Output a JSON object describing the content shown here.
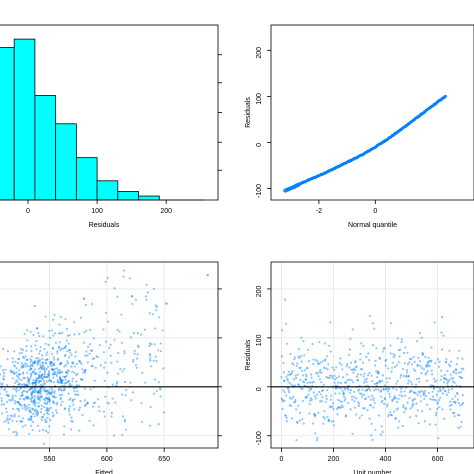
{
  "colors": {
    "hist_fill": "#00ffff",
    "points": "#0080ff",
    "points_light": "#9fc9ef",
    "frame": "#000000",
    "grid": "#e6e6e6"
  },
  "chart_data": [
    {
      "id": "hist",
      "type": "bar",
      "xlabel": "Residuals",
      "ylabel": "",
      "xlim": [
        -55,
        275
      ],
      "ylim": [
        0,
        31
      ],
      "xticks": [
        0,
        100,
        200
      ],
      "xtick_labels": [
        "0",
        "100",
        "200"
      ],
      "bin_edges": [
        -50,
        -20,
        10,
        40,
        70,
        100,
        130,
        160,
        190
      ],
      "values": [
        27,
        28.5,
        18.5,
        13.5,
        7.5,
        3.4,
        1.5,
        0.7
      ],
      "grid": false
    },
    {
      "id": "qq",
      "type": "scatter",
      "xlabel": "Normal quantile",
      "ylabel": "Residuals",
      "xlim": [
        -3.7,
        3.5
      ],
      "ylim": [
        -125,
        255
      ],
      "xticks": [
        -2,
        0
      ],
      "xtick_labels": [
        "-2",
        "0"
      ],
      "yticks": [
        -100,
        0,
        100,
        200
      ],
      "ytick_labels": [
        "-100",
        "0",
        "100",
        "200"
      ],
      "curve": [
        [
          -3.2,
          -105
        ],
        [
          -3.0,
          -100
        ],
        [
          -2.5,
          -85
        ],
        [
          -2.0,
          -72
        ],
        [
          -1.5,
          -58
        ],
        [
          -1.0,
          -43
        ],
        [
          -0.5,
          -28
        ],
        [
          0.0,
          -10
        ],
        [
          0.5,
          10
        ],
        [
          1.0,
          32
        ],
        [
          1.5,
          55
        ],
        [
          2.0,
          78
        ],
        [
          2.3,
          92
        ],
        [
          2.5,
          100
        ]
      ],
      "grid": false
    },
    {
      "id": "fitted",
      "type": "scatter",
      "xlabel": "Fitted",
      "ylabel": "",
      "xlim": [
        498,
        697
      ],
      "ylim": [
        -125,
        255
      ],
      "xticks": [
        550,
        600,
        650
      ],
      "xtick_labels": [
        "550",
        "600",
        "650"
      ],
      "yticks": [
        -100,
        0,
        100,
        200
      ],
      "reference_line_y": 0,
      "highlight_points": [
        [
          688,
          228
        ],
        [
          622,
          185
        ],
        [
          580,
          180
        ],
        [
          652,
          170
        ]
      ],
      "grid": true
    },
    {
      "id": "unit",
      "type": "scatter",
      "xlabel": "Unit number",
      "ylabel": "Residuals",
      "xlim": [
        -40,
        740
      ],
      "ylim": [
        -125,
        255
      ],
      "xticks": [
        0,
        200,
        400,
        600
      ],
      "xtick_labels": [
        "0",
        "200",
        "400",
        "600"
      ],
      "yticks": [
        -100,
        0,
        100,
        200
      ],
      "ytick_labels": [
        "-100",
        "0",
        "100",
        "200"
      ],
      "reference_line_y": 0,
      "n_units": 700,
      "grid": true
    }
  ]
}
